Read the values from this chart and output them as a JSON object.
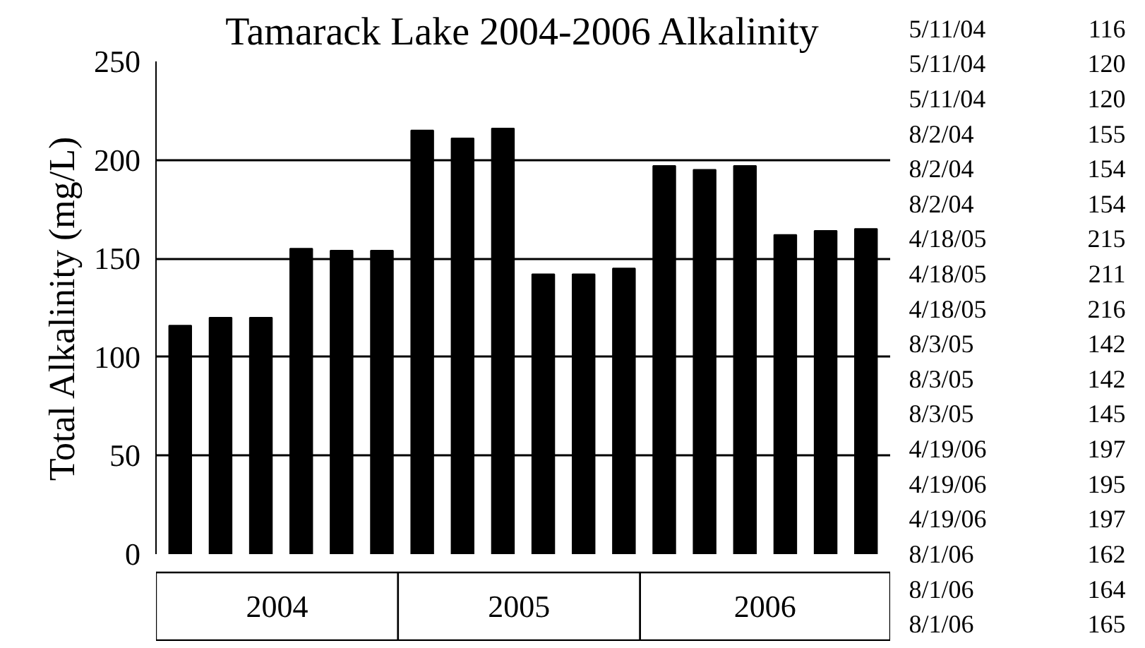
{
  "chart_data": [
    {
      "type": "bar",
      "title": "Tamarack Lake 2004-2006 Alkalinity",
      "ylabel": "Total Alkalinity (mg/L)",
      "categories": [
        null,
        null,
        null,
        null,
        null,
        null,
        null,
        null,
        null,
        null,
        null,
        null,
        null,
        null,
        null,
        null,
        null,
        null
      ],
      "values": [
        116,
        120,
        120,
        155,
        154,
        154,
        215,
        211,
        216,
        142,
        142,
        145,
        197,
        195,
        197,
        162,
        164,
        165
      ],
      "color": "#000000",
      "ylim": [
        0,
        250
      ],
      "yticks": [
        0,
        50,
        100,
        150,
        200,
        250
      ],
      "grid": "y",
      "annotations": [
        "2004",
        "2005",
        "2006"
      ]
    },
    {
      "type": "other",
      "annotations": [
        "5/11/04",
        "116",
        "5/11/04",
        "120",
        "5/11/04",
        "120",
        "8/2/04",
        "155",
        "8/2/04",
        "154",
        "8/2/04",
        "154",
        "4/18/05",
        "215",
        "4/18/05",
        "211",
        "4/18/05",
        "216",
        "8/3/05",
        "142",
        "8/3/05",
        "142",
        "8/3/05",
        "145",
        "4/19/06",
        "197",
        "4/19/06",
        "195",
        "4/19/06",
        "197",
        "8/1/06",
        "162",
        "8/1/06",
        "164",
        "8/1/06",
        "165"
      ]
    }
  ]
}
